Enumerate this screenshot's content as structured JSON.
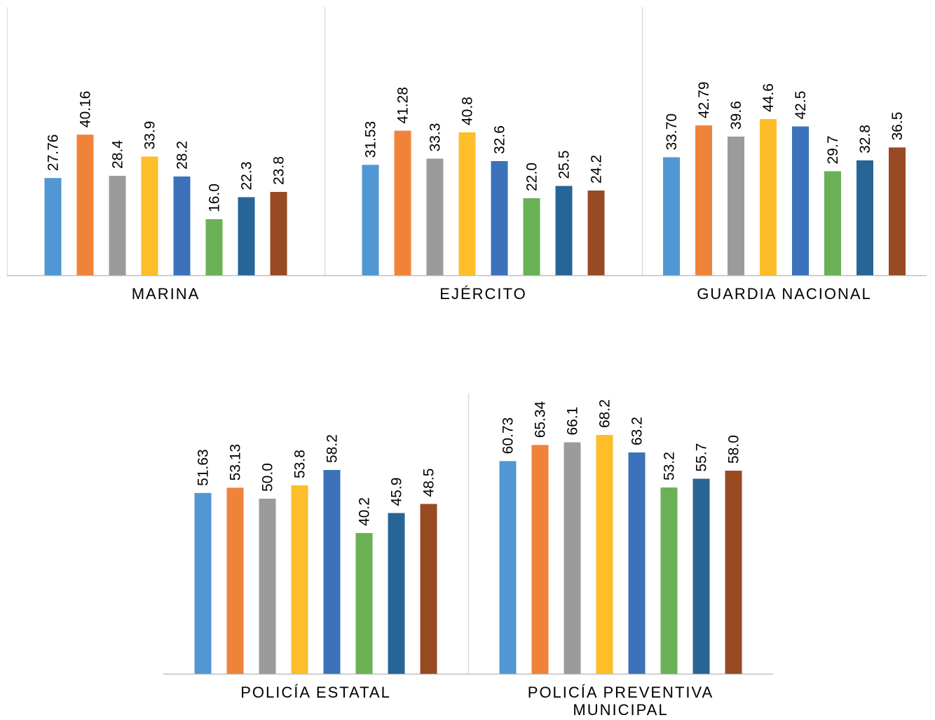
{
  "chart_data": {
    "type": "bar",
    "series_colors": [
      "#5097d3",
      "#ef833a",
      "#999c9b",
      "#fdbe2a",
      "#3c72ba",
      "#6ab156",
      "#286597",
      "#984b22"
    ],
    "groups": [
      {
        "category": "MARINA",
        "label_lines": [
          "MARINA"
        ],
        "values": [
          27.76,
          40.16,
          28.4,
          33.9,
          28.2,
          16.0,
          22.3,
          23.8
        ],
        "labels": [
          "27.76",
          "40.16",
          "28.4",
          "33.9",
          "28.2",
          "16.0",
          "22.3",
          "23.8"
        ]
      },
      {
        "category": "EJÉRCITO",
        "label_lines": [
          "EJÉRCITO"
        ],
        "values": [
          31.53,
          41.28,
          33.3,
          40.8,
          32.6,
          22.0,
          25.5,
          24.2
        ],
        "labels": [
          "31.53",
          "41.28",
          "33.3",
          "40.8",
          "32.6",
          "22.0",
          "25.5",
          "24.2"
        ]
      },
      {
        "category": "GUARDIA NACIONAL",
        "label_lines": [
          "GUARDIA NACIONAL"
        ],
        "values": [
          33.7,
          42.79,
          39.6,
          44.6,
          42.5,
          29.7,
          32.8,
          36.5
        ],
        "labels": [
          "33.70",
          "42.79",
          "39.6",
          "44.6",
          "42.5",
          "29.7",
          "32.8",
          "36.5"
        ]
      },
      {
        "category": "POLICÍA ESTATAL",
        "label_lines": [
          "POLICÍA ESTATAL"
        ],
        "values": [
          51.63,
          53.13,
          50.0,
          53.8,
          58.2,
          40.2,
          45.9,
          48.5
        ],
        "labels": [
          "51.63",
          "53.13",
          "50.0",
          "53.8",
          "58.2",
          "40.2",
          "45.9",
          "48.5"
        ]
      },
      {
        "category": "POLICÍA PREVENTIVA MUNICIPAL",
        "label_lines": [
          "POLICÍA PREVENTIVA",
          "MUNICIPAL"
        ],
        "values": [
          60.73,
          65.34,
          66.1,
          68.2,
          63.2,
          53.2,
          55.7,
          58.0
        ],
        "labels": [
          "60.73",
          "65.34",
          "66.1",
          "68.2",
          "63.2",
          "53.2",
          "55.7",
          "58.0"
        ]
      }
    ],
    "grid": false,
    "legend": "none"
  }
}
